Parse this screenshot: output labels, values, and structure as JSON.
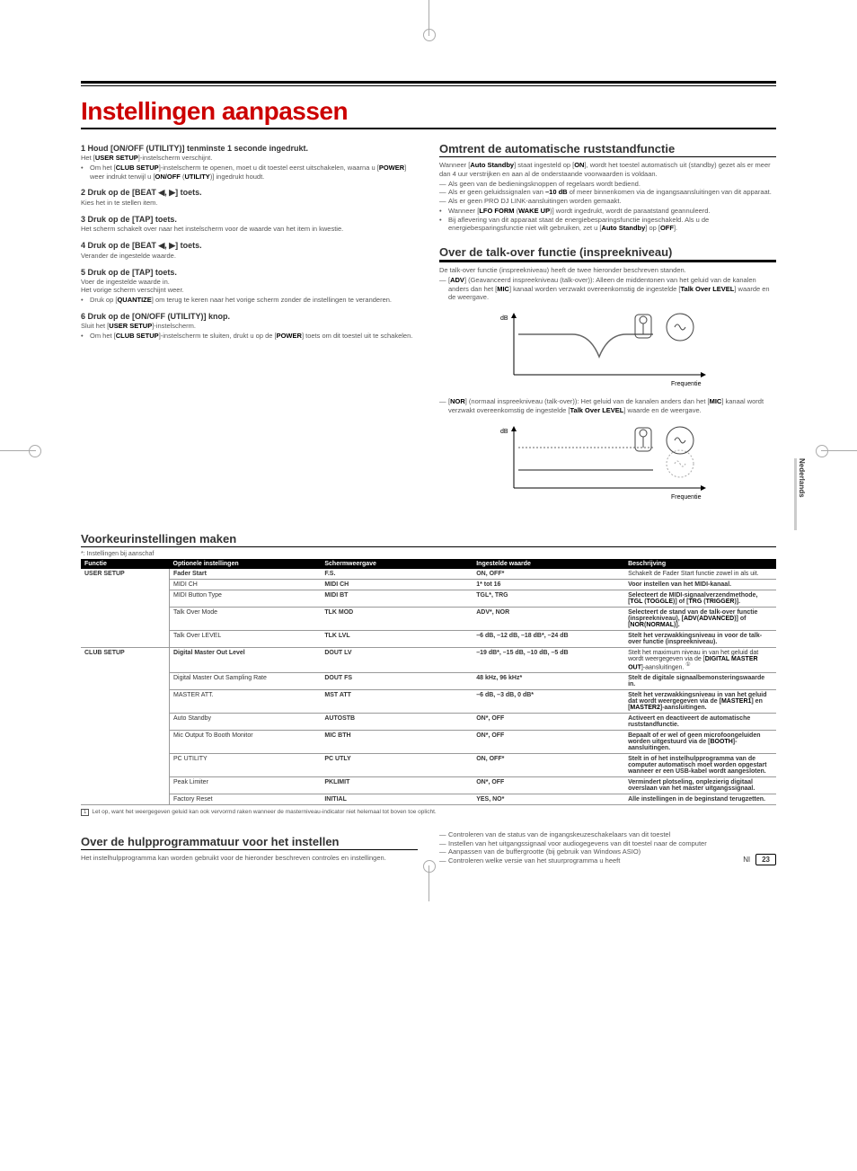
{
  "title": "Instellingen aanpassen",
  "side_label": "Nederlands",
  "left": {
    "steps": [
      {
        "h": "1  Houd [ON/OFF (UTILITY)] tenminste 1 seconde ingedrukt.",
        "p": "Het [<b>USER SETUP</b>]-instelscherm verschijnt.",
        "li": [
          "Om het [<b>CLUB SETUP</b>]-instelscherm te openen, moet u dit toestel eerst uitschakelen, waarna u [<b>POWER</b>] weer indrukt terwijl u [<b>ON/OFF</b> (<b>UTILITY</b>)] ingedrukt houdt."
        ]
      },
      {
        "h": "2  Druk op de [BEAT ◀, ▶] toets.",
        "p": "Kies het in te stellen item."
      },
      {
        "h": "3  Druk op de [TAP] toets.",
        "p": "Het scherm schakelt over naar het instelscherm voor de waarde van het item in kwestie."
      },
      {
        "h": "4  Druk op de [BEAT ◀, ▶] toets.",
        "p": "Verander de ingestelde waarde."
      },
      {
        "h": "5  Druk op de [TAP] toets.",
        "p": "Voer de ingestelde waarde in.<br>Het vorige scherm verschijnt weer.",
        "li": [
          "Druk op [<b>QUANTIZE</b>] om terug te keren naar het vorige scherm zonder de instellingen te veranderen."
        ]
      },
      {
        "h": "6  Druk op de [ON/OFF (UTILITY)] knop.",
        "p": "Sluit het [<b>USER SETUP</b>]-instelscherm.",
        "li": [
          "Om het [<b>CLUB SETUP</b>]-instelscherm te sluiten, drukt u op de [<b>POWER</b>] toets om dit toestel uit te schakelen."
        ]
      }
    ]
  },
  "right": {
    "auto_standby": {
      "h": "Omtrent de automatische ruststandfunctie",
      "p": "Wanneer [<b>Auto Standby</b>] staat ingesteld op [<b>ON</b>], wordt het toestel automatisch uit (standby) gezet als er meer dan 4 uur verstrijken en aan al de onderstaande voorwaarden is voldaan.",
      "dash": [
        "Als geen van de bedieningsknoppen of regelaars wordt bediend.",
        "Als er geen geluidssignalen van <b>–10 dB</b> of meer binnenkomen via de ingangsaansluitingen van dit apparaat.",
        "Als er geen PRO DJ LINK-aansluitingen worden gemaakt."
      ],
      "bul": [
        "Wanneer [<b>LFO FORM</b> (<b>WAKE UP</b>)] wordt ingedrukt, wordt de paraatstand geannuleerd.",
        "Bij aflevering van dit apparaat staat de energiebesparingsfunctie ingeschakeld. Als u de energiebesparingsfunctie niet wilt gebruiken, zet u [<b>Auto Standby</b>] op [<b>OFF</b>]."
      ]
    },
    "talkover": {
      "h": "Over de talk-over functie (inspreekniveau)",
      "p": "De talk-over functie (inspreekniveau) heeft de twee hieronder beschreven standen.",
      "adv": "[<b>ADV</b>] (Geavanceerd inspreekniveau (talk-over)): Alleen de middentonen van het geluid van de kanalen anders dan het [<b>MIC</b>] kanaal worden verzwakt overeenkomstig de ingestelde [<b>Talk Over LEVEL</b>] waarde en de weergave.",
      "nor": "[<b>NOR</b>] (normaal inspreekniveau (talk-over)): Het geluid van de kanalen anders dan het [<b>MIC</b>] kanaal wordt verzwakt overeenkomstig de ingestelde [<b>Talk Over LEVEL</b>] waarde en de weergave.",
      "axis_y": "dB",
      "axis_x": "Frequentie"
    }
  },
  "prefs": {
    "h": "Voorkeurinstellingen maken",
    "note": "*: Instellingen bij aanschaf",
    "headers": [
      "Functie",
      "Optionele instellingen",
      "Schermweergave",
      "Ingestelde waarde",
      "Beschrijving"
    ],
    "groups": [
      {
        "name": "USER SETUP",
        "rows": [
          [
            "Fader Start",
            "F.S.",
            "ON, OFF*",
            "Schakelt de Fader Start functie zowel in als uit."
          ],
          [
            "MIDI CH",
            "MIDI CH",
            "1* tot 16",
            "Voor instellen van het MIDI-kanaal."
          ],
          [
            "MIDI Button Type",
            "MIDI BT",
            "TGL*, TRG",
            "Selecteert de MIDI-signaalverzendmethode, [<b>TGL</b> (<b>TOGGLE</b>)] of [<b>TRG</b> (<b>TRIGGER</b>)]."
          ],
          [
            "Talk Over Mode",
            "TLK MOD",
            "ADV*, NOR",
            "Selecteert de stand van de talk-over functie (inspreekniveau), [<b>ADV</b>(<b>ADVANCED</b>)] of [<b>NOR</b>(<b>NORMAL</b>)]."
          ],
          [
            "Talk Over LEVEL",
            "TLK LVL",
            "–6 dB, –12 dB, –18 dB*, –24 dB",
            "Stelt het verzwakkingsniveau in voor de talk-over functie (inspreekniveau)."
          ]
        ]
      },
      {
        "name": "CLUB SETUP",
        "rows": [
          [
            "Digital Master Out Level",
            "DOUT LV",
            "–19 dB*, –15 dB, –10 dB, –5 dB",
            "Stelt het maximum niveau in van het geluid dat wordt weergegeven via de [<b>DIGITAL MASTER OUT</b>]-aansluitingen. <sup>①</sup>"
          ],
          [
            "Digital Master Out Sampling Rate",
            "DOUT FS",
            "48 kHz, 96 kHz*",
            "Stelt de digitale signaalbemonsteringswaarde in."
          ],
          [
            "MASTER ATT.",
            "MST ATT",
            "–6 dB, –3 dB, 0 dB*",
            "Stelt het verzwakkingsniveau in van het geluid dat wordt weergegeven via de [<b>MASTER1</b>] en [<b>MASTER2</b>]-aansluitingen."
          ],
          [
            "Auto Standby",
            "AUTOSTB",
            "ON*, OFF",
            "Activeert en deactiveert de automatische ruststandfunctie."
          ],
          [
            "Mic Output To Booth Monitor",
            "MIC BTH",
            "ON*, OFF",
            "Bepaalt of er wel of geen microfoongeluiden worden uitgestuurd via de [<b>BOOTH</b>]-aansluitingen."
          ],
          [
            "PC UTILITY",
            "PC UTLY",
            "ON, OFF*",
            "Stelt in of het instelhulpprogramma van de computer automatisch moet worden opgestart wanneer er een USB-kabel wordt aangesloten."
          ],
          [
            "Peak Limiter",
            "PKLIMIT",
            "ON*, OFF",
            "Vermindert plotseling, onplezierig digitaal overslaan van het master uitgangssignaal."
          ],
          [
            "Factory Reset",
            "INITIAL",
            "YES, NO*",
            "Alle instellingen in de beginstand terugzetten."
          ]
        ]
      }
    ],
    "footnote": "Let op, want het weergegeven geluid kan ook vervormd raken wanneer de masterniveau-indicator niet helemaal tot boven toe oplicht."
  },
  "utility": {
    "h": "Over de hulpprogrammatuur voor het instellen",
    "p": "Het instelhulpprogramma kan worden gebruikt voor de hieronder beschreven controles en instellingen.",
    "dash": [
      "Controleren van de status van de ingangskeuzeschakelaars van dit toestel",
      "Instellen van het uitgangssignaal voor audiogegevens van dit toestel naar de computer",
      "Aanpassen van de buffergrootte (bij gebruik van Windows ASIO)",
      "Controleren welke versie van het stuurprogramma u heeft"
    ]
  },
  "footer": {
    "label": "Nl",
    "page": "23"
  }
}
